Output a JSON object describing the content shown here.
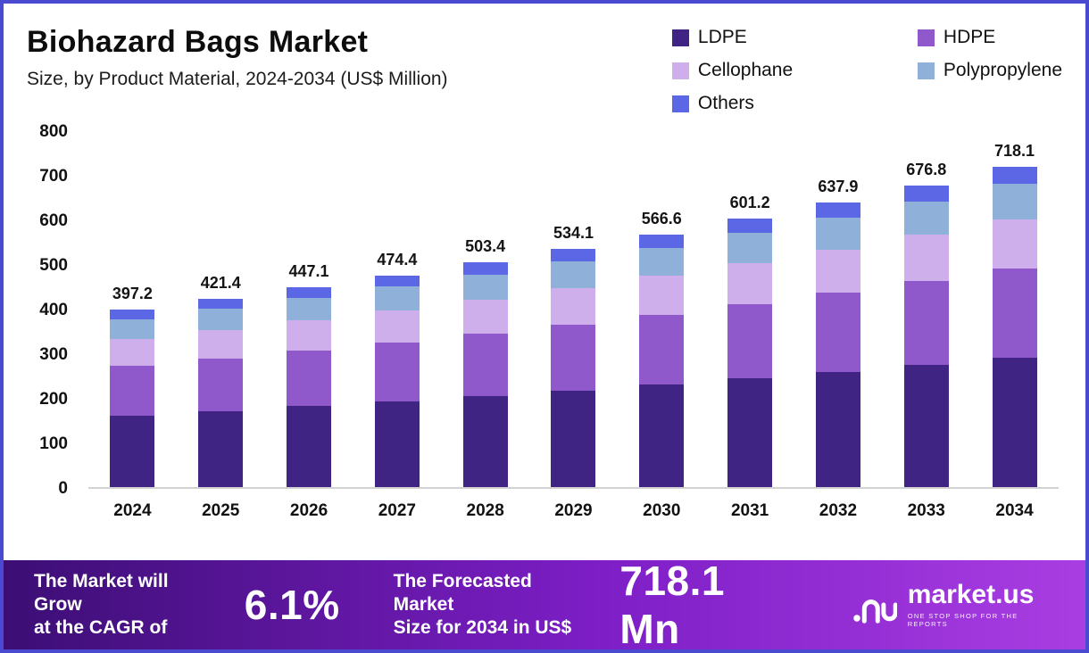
{
  "header": {
    "title": "Biohazard Bags Market",
    "subtitle": "Size, by Product Material, 2024-2034 (US$ Million)"
  },
  "legend": [
    {
      "label": "LDPE",
      "color": "#3f2483"
    },
    {
      "label": "HDPE",
      "color": "#8f58cb"
    },
    {
      "label": "Cellophane",
      "color": "#cfaeec"
    },
    {
      "label": "Polypropylene",
      "color": "#8fb0d9"
    },
    {
      "label": "Others",
      "color": "#5c67e6"
    }
  ],
  "chart_data": {
    "type": "bar",
    "stacked": true,
    "title": "Biohazard Bags Market Size, by Product Material, 2024-2034 (US$ Million)",
    "categories": [
      "2024",
      "2025",
      "2026",
      "2027",
      "2028",
      "2029",
      "2030",
      "2031",
      "2032",
      "2033",
      "2034"
    ],
    "totals": [
      397.2,
      421.4,
      447.1,
      474.4,
      503.4,
      534.1,
      566.6,
      601.2,
      637.9,
      676.8,
      718.1
    ],
    "series": [
      {
        "name": "LDPE",
        "color": "#3f2483",
        "values": [
          160.9,
          170.7,
          181.1,
          192.1,
          203.9,
          216.3,
          229.5,
          243.5,
          258.3,
          274.1,
          290.8
        ]
      },
      {
        "name": "HDPE",
        "color": "#8f58cb",
        "values": [
          110.4,
          117.1,
          124.3,
          131.9,
          139.9,
          148.5,
          157.5,
          167.1,
          177.3,
          188.2,
          199.6
        ]
      },
      {
        "name": "Cellophane",
        "color": "#cfaeec",
        "values": [
          60.4,
          64.1,
          68.0,
          72.1,
          76.5,
          81.2,
          86.1,
          91.4,
          97.0,
          102.9,
          109.2
        ]
      },
      {
        "name": "Polypropylene",
        "color": "#8fb0d9",
        "values": [
          44.5,
          47.2,
          50.1,
          53.1,
          56.4,
          59.8,
          63.5,
          67.3,
          71.4,
          75.8,
          80.4
        ]
      },
      {
        "name": "Others",
        "color": "#5c67e6",
        "values": [
          21.0,
          22.3,
          23.6,
          25.2,
          26.7,
          28.3,
          30.0,
          31.9,
          33.9,
          35.8,
          38.1
        ]
      }
    ],
    "xlabel": "",
    "ylabel": "",
    "ylim": [
      0,
      800
    ],
    "yticks": [
      0,
      100,
      200,
      300,
      400,
      500,
      600,
      700,
      800
    ],
    "grid": false,
    "legend_position": "top-right",
    "data_labels": "total-above-bar"
  },
  "footer": {
    "cagr_label_line1": "The Market will Grow",
    "cagr_label_line2": "at the CAGR of",
    "cagr_value": "6.1%",
    "forecast_label_line1": "The Forecasted Market",
    "forecast_label_line2": "Size for 2034 in US$",
    "forecast_value": "718.1 Mn",
    "brand": "market.us",
    "brand_tagline": "ONE STOP SHOP FOR THE REPORTS"
  }
}
